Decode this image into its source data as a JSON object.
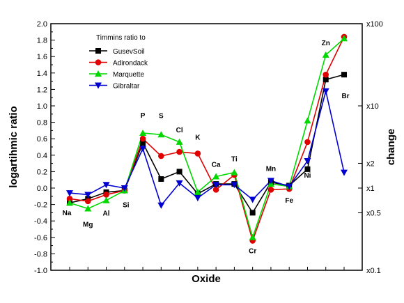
{
  "chart_data": {
    "type": "line",
    "categories": [
      "Na",
      "Mg",
      "Al",
      "Si",
      "P",
      "S",
      "Cl",
      "K",
      "Ca",
      "Ti",
      "Cr",
      "Mn",
      "Fe",
      "Ni",
      "Zn",
      "Br"
    ],
    "xlabel": "Oxide",
    "ylabel": "logartihmic ratio",
    "ylabel_right": "change",
    "ylim": [
      -1.0,
      2.0
    ],
    "yticks": [
      "-1.0",
      "-0.8",
      "-0.6",
      "-0.4",
      "-0.2",
      "0.0",
      "0.2",
      "0.4",
      "0.6",
      "0.8",
      "1.0",
      "1.2",
      "1.4",
      "1.6",
      "1.8",
      "2.0"
    ],
    "right_ticks": [
      {
        "label": "x100",
        "value": 2.0
      },
      {
        "label": "x10",
        "value": 1.0
      },
      {
        "label": "x2",
        "value": 0.301
      },
      {
        "label": "x1",
        "value": 0.0
      },
      {
        "label": "x0.5",
        "value": -0.301
      },
      {
        "label": "x0.1",
        "value": -1.0
      }
    ],
    "legend_title": "Timmins ratio to",
    "legend_position": "top-left",
    "series": [
      {
        "name": "GusevSoil",
        "color": "#000000",
        "marker": "square",
        "values": [
          -0.18,
          -0.13,
          -0.05,
          -0.03,
          0.55,
          0.11,
          0.2,
          -0.07,
          0.05,
          0.05,
          -0.3,
          0.07,
          0.03,
          0.23,
          1.32,
          1.38
        ]
      },
      {
        "name": "Adirondack",
        "color": "#e00000",
        "marker": "circle",
        "values": [
          -0.13,
          -0.16,
          -0.08,
          -0.03,
          0.6,
          0.39,
          0.44,
          0.42,
          -0.02,
          0.16,
          -0.64,
          -0.02,
          -0.01,
          0.56,
          1.38,
          1.84
        ]
      },
      {
        "name": "Marquette",
        "color": "#00d800",
        "marker": "triangle-up",
        "values": [
          -0.18,
          -0.25,
          -0.15,
          -0.03,
          0.67,
          0.65,
          0.56,
          -0.05,
          0.14,
          0.19,
          -0.6,
          0.05,
          0.02,
          0.82,
          1.62,
          1.82
        ]
      },
      {
        "name": "Gibraltar",
        "color": "#0000d0",
        "marker": "triangle-down",
        "values": [
          -0.06,
          -0.08,
          0.04,
          0.0,
          0.48,
          -0.21,
          0.06,
          -0.12,
          0.04,
          0.04,
          -0.14,
          0.09,
          0.02,
          0.33,
          1.18,
          0.19
        ]
      }
    ]
  }
}
